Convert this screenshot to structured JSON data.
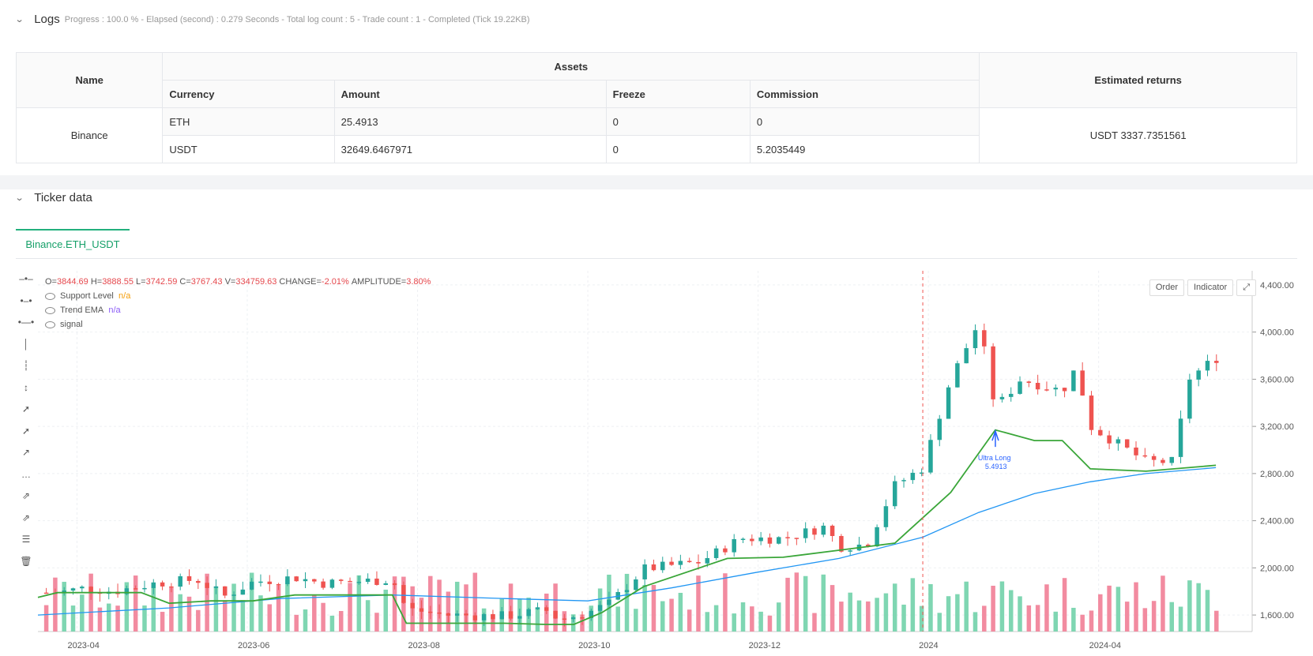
{
  "logs": {
    "title": "Logs",
    "meta": "Progress : 100.0 % - Elapsed (second) : 0.279  Seconds - Total log count : 5 - Trade count : 1 - Completed (Tick 19.22KB)",
    "table": {
      "headers": {
        "name": "Name",
        "assets": "Assets",
        "estimated": "Estimated returns",
        "currency": "Currency",
        "amount": "Amount",
        "freeze": "Freeze",
        "commission": "Commission"
      },
      "exchange": "Binance",
      "rows": [
        {
          "currency": "ETH",
          "amount": "25.4913",
          "freeze": "0",
          "commission": "0"
        },
        {
          "currency": "USDT",
          "amount": "32649.6467971",
          "freeze": "0",
          "commission": "5.2035449"
        }
      ],
      "estimated_returns": "USDT 3337.7351561"
    }
  },
  "ticker": {
    "title": "Ticker data",
    "tab": "Binance.ETH_USDT",
    "buttons": {
      "order": "Order",
      "indicator": "Indicator"
    },
    "ohlc": {
      "o_label": "O=",
      "o": "3844.69",
      "h_label": "H=",
      "h": "3888.55",
      "l_label": "L=",
      "l": "3742.59",
      "c_label": "C=",
      "c": "3767.43",
      "v_label": "V=",
      "v": "334759.63",
      "change_label": "CHANGE=",
      "change": "-2.01%",
      "amp_label": "AMPLITUDE=",
      "amp": "3.80%"
    },
    "legend": [
      {
        "name": "Support Level",
        "value": "n/a",
        "color": "#f59e0b"
      },
      {
        "name": "Trend EMA",
        "value": "n/a",
        "color": "#8b5cf6"
      },
      {
        "name": "signal",
        "value": ""
      }
    ]
  },
  "chart_data": {
    "type": "candlestick",
    "y_ticks": [
      "4,400.00",
      "4,000.00",
      "3,600.00",
      "3,200.00",
      "2,800.00",
      "2,400.00",
      "2,000.00",
      "1,600.00"
    ],
    "y_tick_values": [
      4400,
      4000,
      3600,
      3200,
      2800,
      2400,
      2000,
      1600
    ],
    "x_ticks": [
      "2023-04",
      "2023-06",
      "2023-08",
      "2023-10",
      "2023-12",
      "2024",
      "2024-04"
    ],
    "x_tick_days": [
      7,
      68,
      129,
      190,
      251,
      312,
      373
    ],
    "x_range_days": [
      -7,
      428
    ],
    "ylim": [
      1460,
      4520
    ],
    "signal": {
      "label": "Ultra Long",
      "value": "5.4913",
      "day": 336,
      "price": 3160
    },
    "marker_day": 310,
    "price_path": [
      [
        0,
        1790
      ],
      [
        10,
        1830
      ],
      [
        20,
        1800
      ],
      [
        35,
        1870
      ],
      [
        50,
        1900
      ],
      [
        60,
        1760
      ],
      [
        70,
        1880
      ],
      [
        85,
        1920
      ],
      [
        95,
        1870
      ],
      [
        120,
        1900
      ],
      [
        125,
        1650
      ],
      [
        140,
        1600
      ],
      [
        160,
        1590
      ],
      [
        175,
        1640
      ],
      [
        180,
        1560
      ],
      [
        190,
        1620
      ],
      [
        198,
        1700
      ],
      [
        210,
        1990
      ],
      [
        230,
        2050
      ],
      [
        245,
        2250
      ],
      [
        260,
        2250
      ],
      [
        275,
        2350
      ],
      [
        280,
        2180
      ],
      [
        290,
        2200
      ],
      [
        300,
        2700
      ],
      [
        310,
        2850
      ],
      [
        320,
        3600
      ],
      [
        330,
        4080
      ],
      [
        336,
        3350
      ],
      [
        345,
        3600
      ],
      [
        360,
        3500
      ],
      [
        365,
        3700
      ],
      [
        370,
        3200
      ],
      [
        380,
        3050
      ],
      [
        390,
        2900
      ],
      [
        400,
        2900
      ],
      [
        405,
        3600
      ],
      [
        415,
        3780
      ],
      [
        418,
        3767
      ]
    ],
    "support_path": [
      [
        -7,
        1750
      ],
      [
        0,
        1790
      ],
      [
        30,
        1790
      ],
      [
        40,
        1700
      ],
      [
        55,
        1720
      ],
      [
        70,
        1720
      ],
      [
        85,
        1770
      ],
      [
        120,
        1770
      ],
      [
        125,
        1530
      ],
      [
        160,
        1530
      ],
      [
        175,
        1520
      ],
      [
        185,
        1520
      ],
      [
        195,
        1620
      ],
      [
        210,
        1840
      ],
      [
        240,
        2080
      ],
      [
        260,
        2090
      ],
      [
        280,
        2150
      ],
      [
        300,
        2210
      ],
      [
        320,
        2640
      ],
      [
        336,
        3170
      ],
      [
        350,
        3080
      ],
      [
        360,
        3080
      ],
      [
        370,
        2840
      ],
      [
        390,
        2820
      ],
      [
        415,
        2870
      ]
    ],
    "ema_path": [
      [
        -7,
        1600
      ],
      [
        40,
        1660
      ],
      [
        80,
        1740
      ],
      [
        120,
        1770
      ],
      [
        160,
        1740
      ],
      [
        190,
        1720
      ],
      [
        220,
        1830
      ],
      [
        250,
        1960
      ],
      [
        280,
        2080
      ],
      [
        310,
        2260
      ],
      [
        330,
        2470
      ],
      [
        350,
        2630
      ],
      [
        370,
        2730
      ],
      [
        390,
        2800
      ],
      [
        415,
        2850
      ]
    ],
    "volume_seed": 7
  }
}
